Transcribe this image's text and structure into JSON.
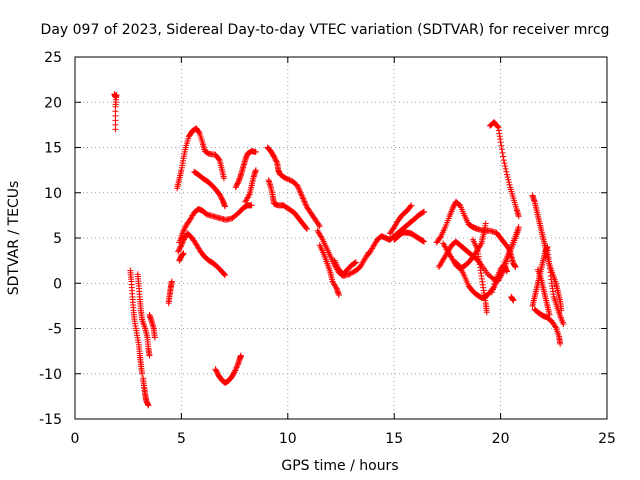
{
  "chart_data": {
    "type": "scatter",
    "title": "Day 097 of 2023, Sidereal Day-to-day VTEC variation (SDTVAR) for receiver mrcg",
    "xlabel": "GPS time / hours",
    "ylabel": "SDTVAR / TECUs",
    "xlim": [
      0,
      25
    ],
    "ylim": [
      -15,
      25
    ],
    "xticks": [
      0,
      5,
      10,
      15,
      20,
      25
    ],
    "yticks": [
      -15,
      -10,
      -5,
      0,
      5,
      10,
      15,
      20,
      25
    ],
    "grid": true,
    "marker": "+",
    "color": "#ff0000",
    "legend": "none",
    "tracks": [
      [
        [
          1.85,
          20.9
        ],
        [
          1.9,
          20.6
        ],
        [
          1.95,
          20.8
        ],
        [
          1.9,
          19.5
        ],
        [
          1.9,
          17.0
        ]
      ],
      [
        [
          2.6,
          1.4
        ],
        [
          2.65,
          0.2
        ],
        [
          2.7,
          -1.5
        ],
        [
          2.75,
          -3.0
        ],
        [
          2.8,
          -4.2
        ],
        [
          2.9,
          -5.5
        ],
        [
          3.0,
          -6.8
        ],
        [
          3.05,
          -8.0
        ],
        [
          3.1,
          -9.0
        ],
        [
          3.15,
          -10.0
        ]
      ],
      [
        [
          2.95,
          1.0
        ],
        [
          3.0,
          -0.3
        ],
        [
          3.05,
          -1.8
        ],
        [
          3.1,
          -3.0
        ],
        [
          3.15,
          -4.0
        ],
        [
          3.3,
          -5.0
        ],
        [
          3.4,
          -6.0
        ],
        [
          3.45,
          -7.2
        ],
        [
          3.5,
          -8.0
        ]
      ],
      [
        [
          3.2,
          -10.5
        ],
        [
          3.25,
          -11.5
        ],
        [
          3.3,
          -12.3
        ],
        [
          3.35,
          -13.0
        ],
        [
          3.45,
          -13.5
        ]
      ],
      [
        [
          3.5,
          -3.5
        ],
        [
          3.6,
          -4.2
        ],
        [
          3.7,
          -5.0
        ],
        [
          3.75,
          -6.0
        ]
      ],
      [
        [
          4.4,
          -2.2
        ],
        [
          4.45,
          -1.3
        ],
        [
          4.5,
          -0.5
        ],
        [
          4.55,
          0.2
        ]
      ],
      [
        [
          4.8,
          10.5
        ],
        [
          4.9,
          11.5
        ],
        [
          5.0,
          12.5
        ],
        [
          5.1,
          13.8
        ],
        [
          5.2,
          15.0
        ],
        [
          5.35,
          16.2
        ],
        [
          5.5,
          16.8
        ],
        [
          5.7,
          17.1
        ],
        [
          5.85,
          16.6
        ],
        [
          6.0,
          15.5
        ],
        [
          6.1,
          14.6
        ],
        [
          6.3,
          14.3
        ],
        [
          6.6,
          14.2
        ],
        [
          6.8,
          13.6
        ],
        [
          6.9,
          12.6
        ],
        [
          7.0,
          11.6
        ]
      ],
      [
        [
          4.9,
          4.5
        ],
        [
          5.05,
          5.5
        ],
        [
          5.2,
          6.3
        ],
        [
          5.4,
          7.0
        ],
        [
          5.6,
          7.8
        ],
        [
          5.8,
          8.2
        ],
        [
          6.0,
          8.0
        ],
        [
          6.2,
          7.6
        ],
        [
          6.5,
          7.4
        ],
        [
          6.8,
          7.2
        ],
        [
          7.1,
          7.0
        ],
        [
          7.4,
          7.2
        ],
        [
          7.7,
          7.8
        ],
        [
          7.9,
          8.3
        ],
        [
          8.1,
          8.6
        ],
        [
          8.3,
          8.6
        ]
      ],
      [
        [
          4.85,
          3.5
        ],
        [
          5.0,
          4.2
        ],
        [
          5.15,
          5.0
        ],
        [
          5.3,
          5.5
        ],
        [
          5.5,
          5.0
        ],
        [
          5.7,
          4.3
        ],
        [
          5.9,
          3.5
        ],
        [
          6.1,
          2.9
        ],
        [
          6.3,
          2.5
        ],
        [
          6.5,
          2.2
        ],
        [
          6.7,
          1.8
        ],
        [
          6.9,
          1.3
        ],
        [
          7.05,
          0.9
        ]
      ],
      [
        [
          4.9,
          2.5
        ],
        [
          5.0,
          3.0
        ],
        [
          5.1,
          3.3
        ]
      ],
      [
        [
          5.6,
          12.3
        ],
        [
          5.8,
          12.0
        ],
        [
          6.0,
          11.6
        ],
        [
          6.2,
          11.3
        ],
        [
          6.4,
          10.9
        ],
        [
          6.6,
          10.4
        ],
        [
          6.8,
          9.8
        ],
        [
          6.95,
          9.1
        ],
        [
          7.05,
          8.5
        ]
      ],
      [
        [
          7.55,
          10.6
        ],
        [
          7.7,
          11.3
        ],
        [
          7.8,
          12.0
        ],
        [
          7.9,
          12.8
        ],
        [
          8.0,
          13.6
        ],
        [
          8.1,
          14.3
        ],
        [
          8.3,
          14.6
        ],
        [
          8.5,
          14.5
        ]
      ],
      [
        [
          8.0,
          9.0
        ],
        [
          8.2,
          9.8
        ],
        [
          8.3,
          10.8
        ],
        [
          8.4,
          11.8
        ],
        [
          8.5,
          12.5
        ]
      ],
      [
        [
          6.6,
          -9.5
        ],
        [
          6.75,
          -10.2
        ],
        [
          6.9,
          -10.7
        ],
        [
          7.05,
          -11.0
        ],
        [
          7.2,
          -10.8
        ],
        [
          7.35,
          -10.4
        ],
        [
          7.5,
          -9.8
        ],
        [
          7.65,
          -9.0
        ],
        [
          7.75,
          -8.3
        ],
        [
          7.8,
          -8.0
        ]
      ],
      [
        [
          9.05,
          15.0
        ],
        [
          9.2,
          14.6
        ],
        [
          9.35,
          14.0
        ],
        [
          9.5,
          13.3
        ],
        [
          9.55,
          12.5
        ],
        [
          9.65,
          12.0
        ],
        [
          9.9,
          11.6
        ],
        [
          10.2,
          11.3
        ],
        [
          10.45,
          10.8
        ],
        [
          10.6,
          10.0
        ],
        [
          10.75,
          9.2
        ],
        [
          10.9,
          8.4
        ],
        [
          11.1,
          7.7
        ],
        [
          11.3,
          7.0
        ],
        [
          11.5,
          6.3
        ]
      ],
      [
        [
          9.1,
          11.4
        ],
        [
          9.2,
          10.6
        ],
        [
          9.3,
          9.6
        ],
        [
          9.35,
          8.8
        ],
        [
          9.55,
          8.6
        ],
        [
          9.8,
          8.6
        ],
        [
          10.05,
          8.2
        ],
        [
          10.3,
          7.8
        ],
        [
          10.5,
          7.2
        ],
        [
          10.7,
          6.6
        ],
        [
          10.9,
          6.0
        ]
      ],
      [
        [
          11.4,
          5.8
        ],
        [
          11.6,
          5.0
        ],
        [
          11.8,
          4.0
        ],
        [
          12.0,
          3.0
        ],
        [
          12.2,
          2.0
        ],
        [
          12.4,
          1.2
        ],
        [
          12.6,
          0.8
        ],
        [
          12.9,
          1.0
        ],
        [
          13.2,
          1.4
        ],
        [
          13.4,
          1.8
        ],
        [
          13.6,
          2.6
        ],
        [
          13.8,
          3.4
        ]
      ],
      [
        [
          11.5,
          4.2
        ],
        [
          11.7,
          3.2
        ],
        [
          11.85,
          2.2
        ],
        [
          12.0,
          1.2
        ],
        [
          12.1,
          0.2
        ],
        [
          12.3,
          -0.6
        ],
        [
          12.4,
          -1.3
        ]
      ],
      [
        [
          12.2,
          2.5
        ],
        [
          12.4,
          1.5
        ],
        [
          12.6,
          1.0
        ],
        [
          12.8,
          1.5
        ],
        [
          13.0,
          2.0
        ],
        [
          13.2,
          2.3
        ]
      ],
      [
        [
          13.8,
          3.2
        ],
        [
          14.0,
          4.0
        ],
        [
          14.2,
          4.8
        ],
        [
          14.4,
          5.2
        ],
        [
          14.6,
          5.0
        ],
        [
          14.8,
          4.8
        ],
        [
          15.0,
          5.2
        ],
        [
          15.2,
          5.6
        ],
        [
          15.4,
          6.0
        ],
        [
          15.6,
          6.4
        ],
        [
          15.8,
          6.8
        ],
        [
          16.0,
          7.2
        ],
        [
          16.2,
          7.6
        ],
        [
          16.4,
          7.9
        ]
      ],
      [
        [
          14.8,
          5.5
        ],
        [
          15.0,
          6.2
        ],
        [
          15.2,
          7.0
        ],
        [
          15.4,
          7.6
        ],
        [
          15.6,
          8.0
        ],
        [
          15.8,
          8.6
        ]
      ],
      [
        [
          15.0,
          4.8
        ],
        [
          15.2,
          5.2
        ],
        [
          15.4,
          5.6
        ],
        [
          15.6,
          5.6
        ],
        [
          15.8,
          5.5
        ],
        [
          16.0,
          5.2
        ],
        [
          16.2,
          4.9
        ],
        [
          16.4,
          4.6
        ]
      ],
      [
        [
          17.0,
          4.5
        ],
        [
          17.2,
          5.2
        ],
        [
          17.4,
          6.2
        ],
        [
          17.6,
          7.4
        ],
        [
          17.75,
          8.3
        ],
        [
          17.9,
          9.0
        ],
        [
          18.1,
          8.6
        ],
        [
          18.3,
          7.5
        ],
        [
          18.5,
          6.5
        ],
        [
          18.7,
          6.2
        ],
        [
          18.9,
          6.0
        ],
        [
          19.2,
          5.8
        ],
        [
          19.5,
          5.8
        ],
        [
          19.8,
          5.6
        ],
        [
          20.0,
          5.0
        ],
        [
          20.2,
          4.4
        ],
        [
          20.4,
          3.8
        ],
        [
          20.5,
          3.0
        ],
        [
          20.6,
          2.2
        ],
        [
          20.7,
          1.8
        ]
      ],
      [
        [
          17.1,
          1.8
        ],
        [
          17.3,
          2.6
        ],
        [
          17.5,
          3.4
        ],
        [
          17.7,
          4.2
        ],
        [
          17.9,
          4.6
        ],
        [
          18.1,
          4.2
        ],
        [
          18.3,
          3.8
        ],
        [
          18.5,
          3.4
        ],
        [
          18.7,
          3.0
        ],
        [
          18.9,
          2.6
        ],
        [
          19.1,
          2.0
        ],
        [
          19.4,
          1.0
        ],
        [
          19.7,
          0.4
        ],
        [
          19.9,
          0.3
        ],
        [
          20.1,
          1.2
        ],
        [
          20.3,
          2.4
        ],
        [
          20.5,
          3.8
        ],
        [
          20.7,
          5.0
        ],
        [
          20.85,
          6.0
        ]
      ],
      [
        [
          17.3,
          4.4
        ],
        [
          17.5,
          3.6
        ],
        [
          17.7,
          2.8
        ],
        [
          17.9,
          2.0
        ],
        [
          18.1,
          1.6
        ],
        [
          18.3,
          1.9
        ],
        [
          18.5,
          2.3
        ],
        [
          18.7,
          2.9
        ],
        [
          18.9,
          3.6
        ],
        [
          19.1,
          4.4
        ],
        [
          19.2,
          5.4
        ],
        [
          19.3,
          6.6
        ]
      ],
      [
        [
          17.9,
          2.3
        ],
        [
          18.1,
          1.8
        ],
        [
          18.3,
          0.8
        ],
        [
          18.5,
          -0.3
        ],
        [
          18.7,
          -0.9
        ],
        [
          18.9,
          -1.3
        ],
        [
          19.1,
          -1.6
        ],
        [
          19.3,
          -1.5
        ],
        [
          19.5,
          -1.0
        ],
        [
          19.7,
          -0.4
        ],
        [
          19.9,
          0.7
        ],
        [
          20.1,
          1.8
        ],
        [
          20.3,
          2.9
        ],
        [
          20.5,
          4.0
        ],
        [
          20.7,
          5.2
        ],
        [
          20.85,
          6.2
        ]
      ],
      [
        [
          18.7,
          4.8
        ],
        [
          18.9,
          3.8
        ],
        [
          19.0,
          2.4
        ],
        [
          19.1,
          0.8
        ],
        [
          19.2,
          -0.8
        ],
        [
          19.3,
          -2.2
        ],
        [
          19.35,
          -3.2
        ]
      ],
      [
        [
          19.5,
          17.4
        ],
        [
          19.7,
          17.8
        ],
        [
          19.9,
          17.2
        ],
        [
          20.0,
          15.6
        ],
        [
          20.15,
          13.6
        ],
        [
          20.3,
          12.0
        ],
        [
          20.45,
          10.6
        ],
        [
          20.6,
          9.4
        ],
        [
          20.75,
          8.2
        ],
        [
          20.85,
          7.4
        ]
      ],
      [
        [
          19.6,
          -1.0
        ],
        [
          19.8,
          0.5
        ],
        [
          20.0,
          1.6
        ],
        [
          20.2,
          1.9
        ],
        [
          20.3,
          1.3
        ]
      ],
      [
        [
          20.5,
          -1.5
        ],
        [
          20.6,
          -1.9
        ]
      ],
      [
        [
          21.5,
          9.7
        ],
        [
          21.6,
          9.0
        ],
        [
          21.7,
          8.0
        ],
        [
          21.8,
          7.0
        ],
        [
          21.9,
          6.0
        ],
        [
          22.0,
          5.0
        ],
        [
          22.1,
          4.0
        ],
        [
          22.2,
          3.0
        ],
        [
          22.3,
          2.0
        ],
        [
          22.45,
          1.0
        ],
        [
          22.6,
          0.0
        ],
        [
          22.7,
          -1.0
        ],
        [
          22.8,
          -2.0
        ],
        [
          22.85,
          -3.0
        ]
      ],
      [
        [
          21.5,
          -2.5
        ],
        [
          21.6,
          -1.5
        ],
        [
          21.7,
          -0.5
        ],
        [
          21.8,
          0.5
        ],
        [
          21.9,
          1.5
        ],
        [
          22.0,
          2.5
        ],
        [
          22.1,
          3.5
        ],
        [
          22.2,
          4.0
        ]
      ],
      [
        [
          21.6,
          -2.9
        ],
        [
          21.8,
          -3.3
        ],
        [
          22.0,
          -3.6
        ],
        [
          22.2,
          -3.8
        ],
        [
          22.4,
          -4.2
        ],
        [
          22.6,
          -4.9
        ],
        [
          22.75,
          -5.9
        ],
        [
          22.8,
          -6.7
        ]
      ],
      [
        [
          22.2,
          4.0
        ],
        [
          22.3,
          2.0
        ],
        [
          22.4,
          0.0
        ],
        [
          22.5,
          -1.5
        ],
        [
          22.65,
          -2.6
        ],
        [
          22.8,
          -3.6
        ],
        [
          22.95,
          -4.5
        ]
      ],
      [
        [
          21.75,
          1.5
        ],
        [
          21.9,
          0.5
        ],
        [
          22.0,
          -0.5
        ],
        [
          22.1,
          -1.5
        ],
        [
          22.2,
          -2.5
        ],
        [
          22.3,
          -3.5
        ]
      ]
    ]
  }
}
